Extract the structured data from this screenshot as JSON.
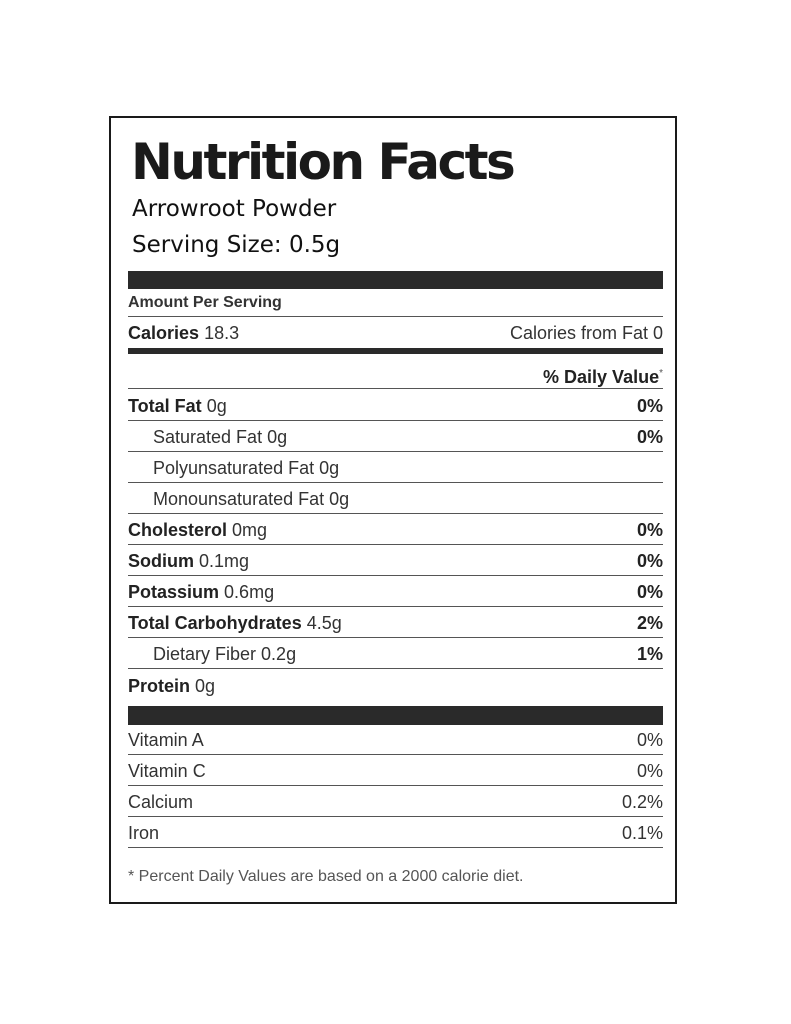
{
  "label": {
    "title": "Nutrition Facts",
    "product": "Arrowroot Powder",
    "serving_size": "Serving Size: 0.5g",
    "amount_per_serving": "Amount Per Serving",
    "calories_label": "Calories",
    "calories_value": "18.3",
    "calories_from_fat": "Calories from Fat 0",
    "daily_value_header": "% Daily Value",
    "daily_value_marker": "*",
    "nutrients": [
      {
        "name": "Total Fat",
        "amount": "0g",
        "dv": "0%"
      },
      {
        "name": "Saturated Fat",
        "amount": "0g",
        "dv": "0%"
      },
      {
        "name": "Polyunsaturated Fat",
        "amount": "0g",
        "dv": ""
      },
      {
        "name": "Monounsaturated Fat",
        "amount": "0g",
        "dv": ""
      },
      {
        "name": "Cholesterol",
        "amount": "0mg",
        "dv": "0%"
      },
      {
        "name": "Sodium",
        "amount": "0.1mg",
        "dv": "0%"
      },
      {
        "name": "Potassium",
        "amount": "0.6mg",
        "dv": "0%"
      },
      {
        "name": "Total Carbohydrates",
        "amount": "4.5g",
        "dv": "2%"
      },
      {
        "name": "Dietary Fiber",
        "amount": "0.2g",
        "dv": "1%"
      },
      {
        "name": "Protein",
        "amount": "0g",
        "dv": ""
      }
    ],
    "vitamins": [
      {
        "name": "Vitamin A",
        "dv": "0%"
      },
      {
        "name": "Vitamin C",
        "dv": "0%"
      },
      {
        "name": "Calcium",
        "dv": "0.2%"
      },
      {
        "name": "Iron",
        "dv": "0.1%"
      }
    ],
    "footnote": "* Percent Daily Values are based on a 2000 calorie diet."
  }
}
